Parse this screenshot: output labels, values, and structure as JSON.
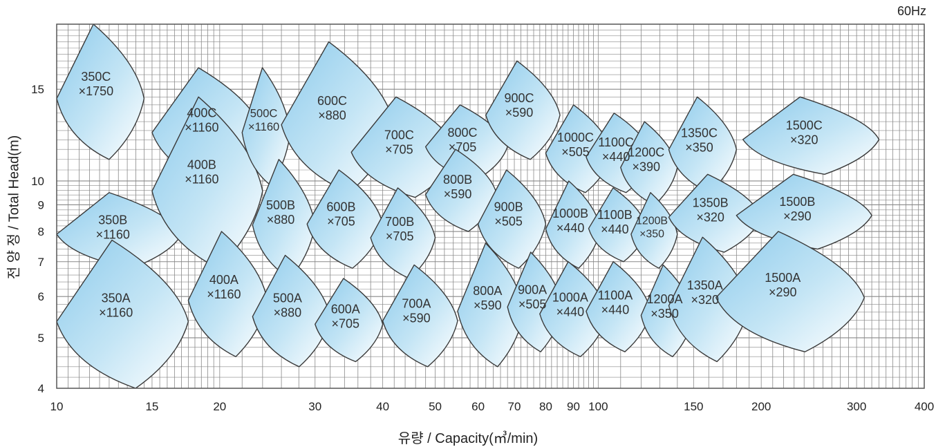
{
  "frequency_label": "60Hz",
  "chart_data": {
    "type": "scatter",
    "title": "",
    "xlabel": "유량 / Capacity(㎥/min)",
    "ylabel": "전 양 정 / Total Head(m)",
    "x_scale": "log",
    "y_scale": "log",
    "xlim": [
      10,
      400
    ],
    "ylim": [
      4,
      20
    ],
    "x_ticks": [
      10,
      15,
      20,
      30,
      40,
      50,
      60,
      70,
      80,
      90,
      100,
      150,
      200,
      300,
      400
    ],
    "y_ticks": [
      4,
      5,
      6,
      7,
      8,
      9,
      10,
      15
    ],
    "grid": true,
    "legend": "none",
    "colors": {
      "envelope_fill": "#a9d8f0",
      "envelope_edge": "#3a3a3a",
      "grid": "#888888"
    },
    "envelopes": [
      {
        "model": "350C",
        "speed": "×1750",
        "q": [
          10,
          14.5
        ],
        "h": [
          11,
          20
        ]
      },
      {
        "model": "350B",
        "speed": "×1160",
        "q": [
          10,
          17
        ],
        "h": [
          6.8,
          9.5
        ]
      },
      {
        "model": "350A",
        "speed": "×1160",
        "q": [
          10,
          17.5
        ],
        "h": [
          4,
          7.7
        ]
      },
      {
        "model": "400C",
        "speed": "×1160",
        "q": [
          15,
          24
        ],
        "h": [
          9.8,
          16.5
        ]
      },
      {
        "model": "400B",
        "speed": "×1160",
        "q": [
          15,
          24
        ],
        "h": [
          6.8,
          14.5
        ]
      },
      {
        "model": "400A",
        "speed": "×1160",
        "q": [
          17.5,
          24.5
        ],
        "h": [
          4.6,
          8
        ]
      },
      {
        "model": "500C",
        "speed": "×1160",
        "q": [
          22,
          27
        ],
        "h": [
          9.8,
          16.5
        ]
      },
      {
        "model": "500B",
        "speed": "×880",
        "q": [
          23,
          30
        ],
        "h": [
          6.5,
          11
        ]
      },
      {
        "model": "500A",
        "speed": "×880",
        "q": [
          23,
          32
        ],
        "h": [
          4.4,
          7.2
        ]
      },
      {
        "model": "600C",
        "speed": "×880",
        "q": [
          26,
          42
        ],
        "h": [
          9.5,
          18.5
        ]
      },
      {
        "model": "600B",
        "speed": "×705",
        "q": [
          29,
          40
        ],
        "h": [
          6.8,
          10.5
        ]
      },
      {
        "model": "600A",
        "speed": "×705",
        "q": [
          30,
          40
        ],
        "h": [
          4.5,
          6.5
        ]
      },
      {
        "model": "700C",
        "speed": "×705",
        "q": [
          35,
          55
        ],
        "h": [
          9.3,
          14.5
        ]
      },
      {
        "model": "700B",
        "speed": "×705",
        "q": [
          38,
          50
        ],
        "h": [
          6.5,
          9.7
        ]
      },
      {
        "model": "700A",
        "speed": "×590",
        "q": [
          40,
          55
        ],
        "h": [
          4.4,
          6.9
        ]
      },
      {
        "model": "800C",
        "speed": "×705",
        "q": [
          48,
          68
        ],
        "h": [
          10,
          14
        ]
      },
      {
        "model": "800B",
        "speed": "×590",
        "q": [
          48,
          65
        ],
        "h": [
          8,
          11.5
        ]
      },
      {
        "model": "800A",
        "speed": "×590",
        "q": [
          55,
          73
        ],
        "h": [
          4.4,
          7.6
        ]
      },
      {
        "model": "900C",
        "speed": "×590",
        "q": [
          62,
          85
        ],
        "h": [
          11,
          17
        ]
      },
      {
        "model": "900B",
        "speed": "×505",
        "q": [
          60,
          80
        ],
        "h": [
          6.8,
          10.5
        ]
      },
      {
        "model": "900A",
        "speed": "×505",
        "q": [
          68,
          86
        ],
        "h": [
          4.7,
          7.3
        ]
      },
      {
        "model": "1000C",
        "speed": "×505",
        "q": [
          80,
          106
        ],
        "h": [
          9.5,
          14
        ]
      },
      {
        "model": "1000B",
        "speed": "×440",
        "q": [
          80,
          101
        ],
        "h": [
          6.8,
          10
        ]
      },
      {
        "model": "1000A",
        "speed": "×440",
        "q": [
          78,
          104
        ],
        "h": [
          4.6,
          7
        ]
      },
      {
        "model": "1100C",
        "speed": "×440",
        "q": [
          95,
          126
        ],
        "h": [
          9.5,
          13.5
        ]
      },
      {
        "model": "1100B",
        "speed": "×440",
        "q": [
          96,
          123
        ],
        "h": [
          7,
          9.7
        ]
      },
      {
        "model": "1100A",
        "speed": "×440",
        "q": [
          95,
          125
        ],
        "h": [
          4.7,
          7
        ]
      },
      {
        "model": "1200C",
        "speed": "×390",
        "q": [
          110,
          140
        ],
        "h": [
          9,
          13
        ]
      },
      {
        "model": "1200B",
        "speed": "×350",
        "q": [
          115,
          140
        ],
        "h": [
          6.8,
          9.5
        ]
      },
      {
        "model": "1200A",
        "speed": "×350",
        "q": [
          120,
          150
        ],
        "h": [
          4.6,
          6.9
        ]
      },
      {
        "model": "1350C",
        "speed": "×350",
        "q": [
          135,
          180
        ],
        "h": [
          9.5,
          14.5
        ]
      },
      {
        "model": "1350B",
        "speed": "×320",
        "q": [
          135,
          200
        ],
        "h": [
          7.3,
          10.3
        ]
      },
      {
        "model": "1350A",
        "speed": "×320",
        "q": [
          135,
          190
        ],
        "h": [
          4.5,
          7.8
        ]
      },
      {
        "model": "1500C",
        "speed": "×320",
        "q": [
          185,
          330
        ],
        "h": [
          10.3,
          14.5
        ]
      },
      {
        "model": "1500B",
        "speed": "×290",
        "q": [
          180,
          320
        ],
        "h": [
          7.4,
          10.3
        ]
      },
      {
        "model": "1500A",
        "speed": "×290",
        "q": [
          165,
          310
        ],
        "h": [
          4.7,
          8
        ]
      }
    ]
  }
}
